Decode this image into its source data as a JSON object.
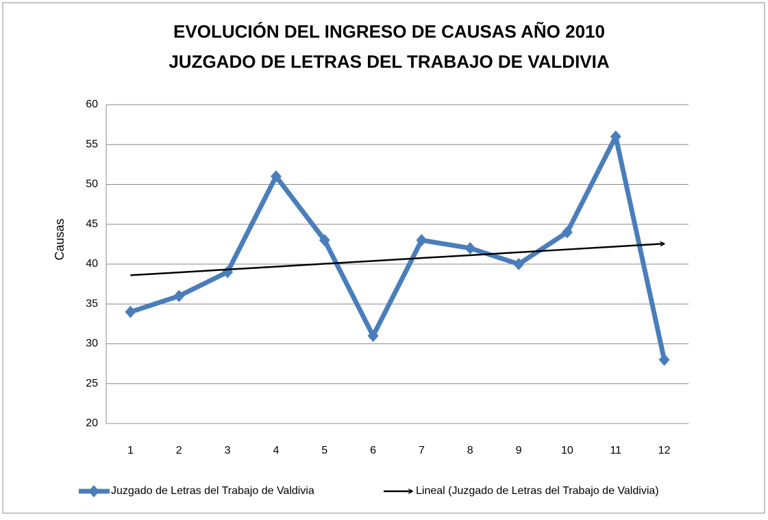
{
  "chart_data": {
    "type": "line",
    "title": "EVOLUCIÓN DEL INGRESO DE CAUSAS AÑO 2010",
    "subtitle": "JUZGADO DE LETRAS DEL TRABAJO DE VALDIVIA",
    "y_label": "Causas",
    "categories": [
      "1",
      "2",
      "3",
      "4",
      "5",
      "6",
      "7",
      "8",
      "9",
      "10",
      "11",
      "12"
    ],
    "series": [
      {
        "name": "Juzgado de Letras del Trabajo de Valdivia",
        "color": "#4a7ebb",
        "values": [
          34,
          36,
          39,
          51,
          43,
          31,
          43,
          42,
          40,
          44,
          56,
          28
        ]
      },
      {
        "name": "Lineal (Juzgado de Letras del Trabajo de Valdivia)",
        "color": "#000000",
        "trendline": true,
        "values": [
          38.6,
          38.96,
          39.32,
          39.68,
          40.04,
          40.4,
          40.76,
          41.12,
          41.48,
          41.84,
          42.2,
          42.56
        ]
      }
    ],
    "ylim": [
      20,
      60
    ],
    "yticks": [
      20,
      25,
      30,
      35,
      40,
      45,
      50,
      55,
      60
    ],
    "grid": true,
    "legend": "bottom"
  }
}
